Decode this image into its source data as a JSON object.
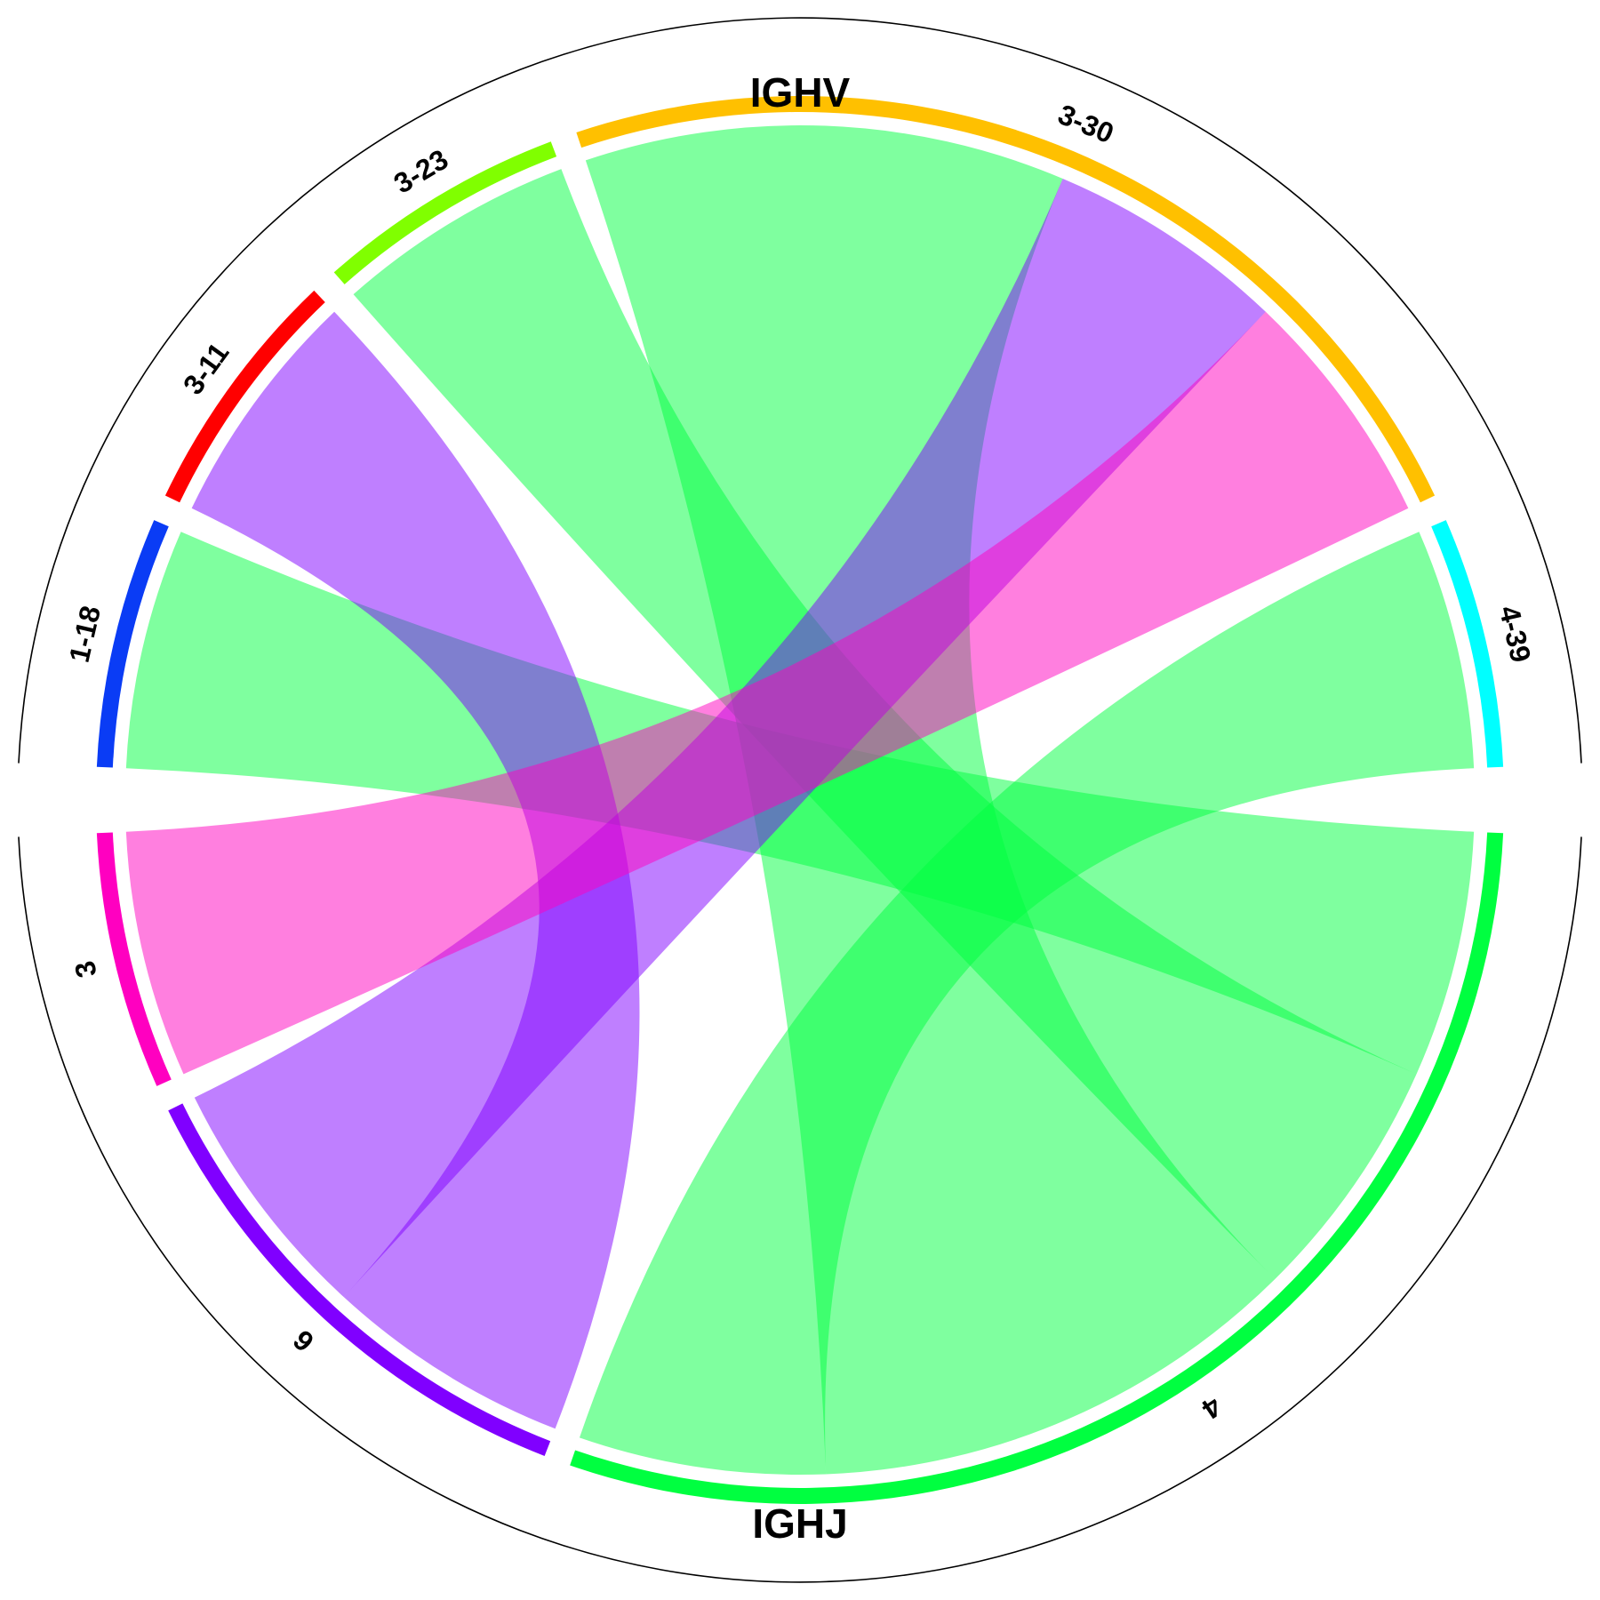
{
  "chart_data": {
    "type": "chord",
    "groups": [
      {
        "name": "IGHV",
        "sectors": [
          "1-18",
          "3-11",
          "3-23",
          "3-30",
          "4-39"
        ]
      },
      {
        "name": "IGHJ",
        "sectors": [
          "4",
          "6",
          "3"
        ]
      }
    ],
    "sectors": [
      {
        "name": "1-18",
        "group": "IGHV",
        "value": 2,
        "color": "#0A3CF5"
      },
      {
        "name": "3-11",
        "group": "IGHV",
        "value": 2,
        "color": "#FF0000"
      },
      {
        "name": "3-23",
        "group": "IGHV",
        "value": 2,
        "color": "#80FF00"
      },
      {
        "name": "3-30",
        "group": "IGHV",
        "value": 8,
        "color": "#FFC000"
      },
      {
        "name": "4-39",
        "group": "IGHV",
        "value": 2,
        "color": "#00FFFF"
      },
      {
        "name": "4",
        "group": "IGHJ",
        "value": 10,
        "color": "#00FF40"
      },
      {
        "name": "6",
        "group": "IGHJ",
        "value": 4,
        "color": "#8000FF"
      },
      {
        "name": "3",
        "group": "IGHJ",
        "value": 2,
        "color": "#FF00C0"
      }
    ],
    "links": [
      {
        "from": "1-18",
        "to": "4",
        "value": 2
      },
      {
        "from": "3-11",
        "to": "6",
        "value": 2
      },
      {
        "from": "3-23",
        "to": "4",
        "value": 2
      },
      {
        "from": "3-30",
        "to": "4",
        "value": 4
      },
      {
        "from": "3-30",
        "to": "6",
        "value": 2
      },
      {
        "from": "3-30",
        "to": "3",
        "value": 2
      },
      {
        "from": "4-39",
        "to": "4",
        "value": 2
      }
    ]
  }
}
